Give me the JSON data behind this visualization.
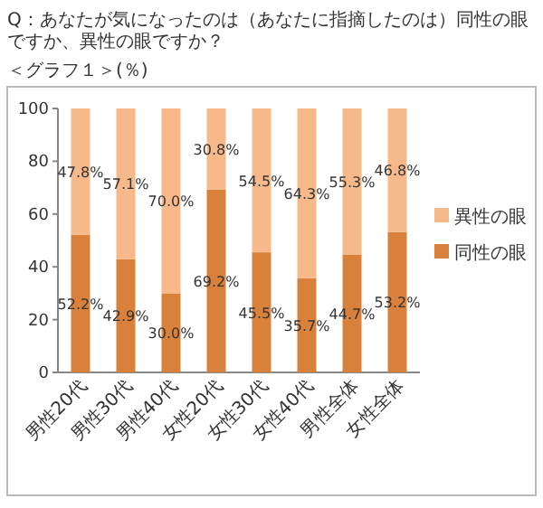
{
  "chart_data": {
    "type": "bar",
    "stacked": true,
    "title": "Q：あなたが気になったのは（あなたに指摘したのは）同性の眼ですか、異性の眼ですか？",
    "subtitle": "＜グラフ１＞(％)",
    "categories": [
      "男性20代",
      "男性30代",
      "男性40代",
      "女性20代",
      "女性30代",
      "女性40代",
      "男性全体",
      "女性全体"
    ],
    "series": [
      {
        "name": "同性の眼",
        "color": "#d9803a",
        "values": [
          52.2,
          42.9,
          30.0,
          69.2,
          45.5,
          35.7,
          44.7,
          53.2
        ],
        "value_labels": [
          "52.2%",
          "42.9%",
          "30.0%",
          "69.2%",
          "45.5%",
          "35.7%",
          "44.7%",
          "53.2%"
        ]
      },
      {
        "name": "異性の眼",
        "color": "#f8b98a",
        "values": [
          47.8,
          57.1,
          70.0,
          30.8,
          54.5,
          64.3,
          55.3,
          46.8
        ],
        "value_labels": [
          "47.8%",
          "57.1%",
          "70.0%",
          "30.8%",
          "54.5%",
          "64.3%",
          "55.3%",
          "46.8%"
        ]
      }
    ],
    "ylim": [
      0,
      100
    ],
    "yticks": [
      0,
      20,
      40,
      60,
      80,
      100
    ],
    "legend": "right"
  }
}
